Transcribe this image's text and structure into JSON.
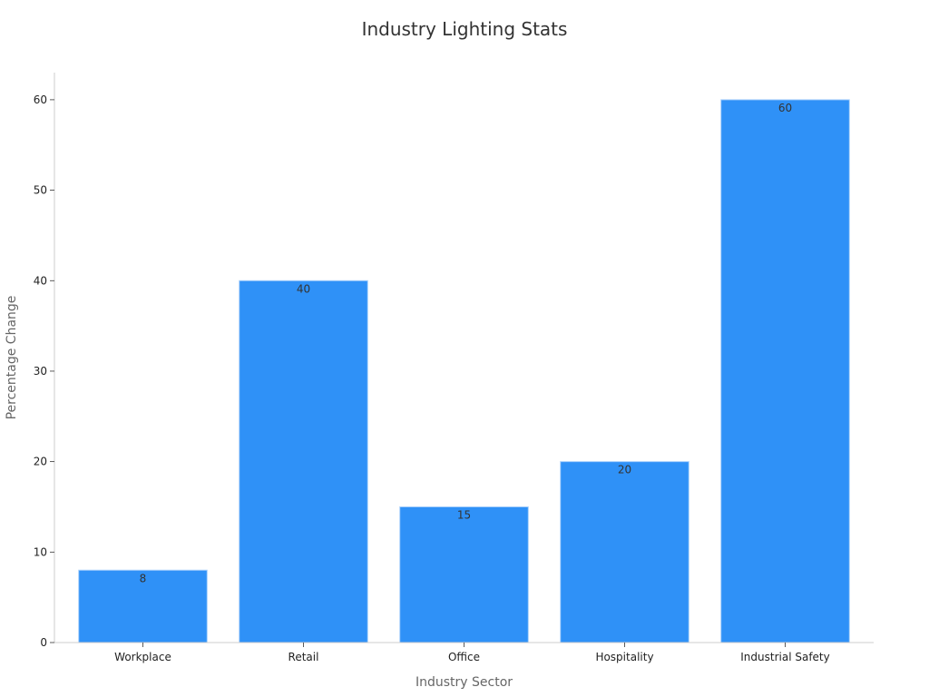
{
  "chart_data": {
    "type": "bar",
    "title": "Industry Lighting Stats",
    "xlabel": "Industry Sector",
    "ylabel": "Percentage Change",
    "categories": [
      "Workplace",
      "Retail",
      "Office",
      "Hospitality",
      "Industrial Safety"
    ],
    "values": [
      8,
      40,
      15,
      20,
      60
    ],
    "ylim": [
      0,
      63
    ],
    "yticks": [
      0,
      10,
      20,
      30,
      40,
      50,
      60
    ],
    "grid": false,
    "bar_color": "#2f91f7",
    "bar_edge_color": "#a9d0fb"
  }
}
